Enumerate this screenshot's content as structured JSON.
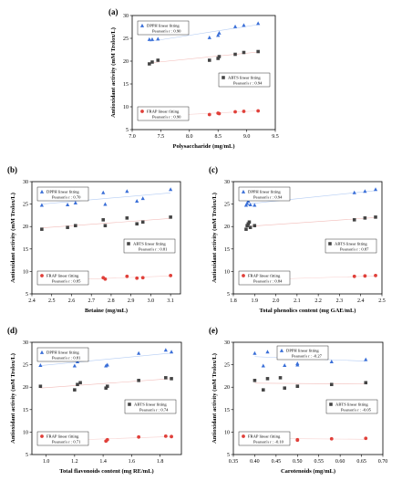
{
  "colors": {
    "dpph": "#3a6fd8",
    "abts": "#444444",
    "frap": "#e0403a",
    "dpph_fit": "#6a9ae8",
    "abts_fit": "#e57a74",
    "frap_fit": "#f0a09c"
  },
  "shared": {
    "ylabel": "Antioxidant activity (mM Trolox/L)",
    "legend": {
      "dpph": "DPPH linear fitting",
      "abts": "ABTS linear fitting",
      "frap": "FRAP linear fitting"
    }
  },
  "chart_data": [
    {
      "id": "a",
      "type": "scatter",
      "panel_label": "(a)",
      "xlabel": "Polysaccharide (mg/mL)",
      "ylabel": "Antioxidant activity (mM Trolox/L)",
      "xlim": [
        7.0,
        9.5
      ],
      "ylim": [
        5,
        30
      ],
      "xticks": [
        7.0,
        7.5,
        8.0,
        8.5,
        9.0,
        9.5
      ],
      "xtick_labels": [
        "7.0",
        "7.5",
        "8.0",
        "8.5",
        "9.0",
        "9.5"
      ],
      "yticks": [
        5,
        10,
        15,
        20,
        25,
        30
      ],
      "pearson": {
        "dpph": "Pearson's r :  0.90",
        "abts": "Pearson's r :  0.94",
        "frap": "Pearson's r :  0.90"
      },
      "legend_positions": {
        "dpph": "top-left",
        "abts": "middle-right",
        "frap": "bottom-left"
      },
      "series": [
        {
          "key": "dpph",
          "marker": "triangle",
          "x": [
            7.3,
            7.35,
            7.45,
            8.35,
            8.5,
            8.52,
            8.8,
            8.95,
            9.2
          ],
          "y": [
            24.8,
            24.8,
            24.9,
            25.2,
            25.7,
            26.2,
            27.6,
            27.9,
            28.3
          ],
          "fit": [
            [
              7.3,
              24.3
            ],
            [
              9.2,
              28.0
            ]
          ]
        },
        {
          "key": "abts",
          "marker": "square",
          "x": [
            7.3,
            7.35,
            7.45,
            8.35,
            8.5,
            8.52,
            8.8,
            8.95,
            9.2
          ],
          "y": [
            19.4,
            19.8,
            20.2,
            20.2,
            20.6,
            21.0,
            21.5,
            21.9,
            22.1
          ],
          "fit": [
            [
              7.3,
              19.6
            ],
            [
              9.2,
              22.0
            ]
          ]
        },
        {
          "key": "frap",
          "marker": "circle",
          "x": [
            7.3,
            7.35,
            7.45,
            8.35,
            8.5,
            8.52,
            8.8,
            8.95,
            9.2
          ],
          "y": [
            7.9,
            8.0,
            8.2,
            8.3,
            8.6,
            8.5,
            8.9,
            9.0,
            9.1
          ],
          "fit": [
            [
              7.3,
              7.9
            ],
            [
              9.2,
              9.1
            ]
          ]
        }
      ]
    },
    {
      "id": "b",
      "type": "scatter",
      "panel_label": "(b)",
      "xlabel": "Betaine (mg/mL)",
      "ylabel": "Antioxidant activity (mM Trolox/L)",
      "xlim": [
        2.4,
        3.15
      ],
      "ylim": [
        5,
        30
      ],
      "xticks": [
        2.4,
        2.5,
        2.6,
        2.7,
        2.8,
        2.9,
        3.0,
        3.1
      ],
      "xtick_labels": [
        "2.4",
        "2.5",
        "2.6",
        "2.7",
        "2.8",
        "2.9",
        "3.0",
        "3.1"
      ],
      "yticks": [
        5,
        10,
        15,
        20,
        25,
        30
      ],
      "pearson": {
        "dpph": "Pearson's r :  0.70",
        "abts": "Pearson's r :  0.81",
        "frap": "Pearson's r :  0.85"
      },
      "legend_positions": {
        "dpph": "top-left",
        "abts": "middle-right",
        "frap": "bottom-left"
      },
      "series": [
        {
          "key": "dpph",
          "marker": "triangle",
          "x": [
            2.45,
            2.58,
            2.62,
            2.76,
            2.77,
            2.88,
            2.93,
            2.96,
            3.1
          ],
          "y": [
            24.8,
            24.9,
            25.3,
            27.6,
            25.0,
            27.9,
            25.7,
            26.3,
            28.3
          ],
          "fit": [
            [
              2.45,
              25.0
            ],
            [
              3.1,
              27.5
            ]
          ]
        },
        {
          "key": "abts",
          "marker": "square",
          "x": [
            2.45,
            2.58,
            2.62,
            2.76,
            2.77,
            2.88,
            2.93,
            2.96,
            3.1
          ],
          "y": [
            19.4,
            19.8,
            20.2,
            21.5,
            20.2,
            21.9,
            20.6,
            21.0,
            22.1
          ],
          "fit": [
            [
              2.45,
              19.7
            ],
            [
              3.1,
              21.8
            ]
          ]
        },
        {
          "key": "frap",
          "marker": "circle",
          "x": [
            2.45,
            2.58,
            2.62,
            2.76,
            2.77,
            2.88,
            2.93,
            2.96,
            3.1
          ],
          "y": [
            7.9,
            8.0,
            8.2,
            8.6,
            8.3,
            8.9,
            8.5,
            8.6,
            9.1
          ],
          "fit": [
            [
              2.45,
              7.9
            ],
            [
              3.1,
              9.0
            ]
          ]
        }
      ]
    },
    {
      "id": "c",
      "type": "scatter",
      "panel_label": "(c)",
      "xlabel": "Total phenolics content (mg GAE/mL)",
      "ylabel": "Antioxidant activity (mM Trolox/L)",
      "xlim": [
        1.8,
        2.5
      ],
      "ylim": [
        5,
        30
      ],
      "xticks": [
        1.8,
        1.9,
        2.0,
        2.1,
        2.2,
        2.3,
        2.4,
        2.5
      ],
      "xtick_labels": [
        "1.8",
        "1.9",
        "2.0",
        "2.1",
        "2.2",
        "2.3",
        "2.4",
        "2.5"
      ],
      "yticks": [
        5,
        10,
        15,
        20,
        25,
        30
      ],
      "pearson": {
        "dpph": "Pearson's r :  0.94",
        "abts": "Pearson's r :  0.87",
        "frap": "Pearson's r :  0.84"
      },
      "legend_positions": {
        "dpph": "top-left",
        "abts": "middle-right",
        "frap": "bottom-left"
      },
      "series": [
        {
          "key": "dpph",
          "marker": "triangle",
          "x": [
            1.86,
            1.865,
            1.87,
            1.875,
            1.88,
            1.9,
            2.37,
            2.42,
            2.47
          ],
          "y": [
            24.8,
            25.2,
            25.7,
            26.2,
            24.9,
            24.8,
            27.6,
            27.9,
            28.3
          ],
          "fit": [
            [
              1.86,
              25.0
            ],
            [
              2.47,
              28.0
            ]
          ]
        },
        {
          "key": "abts",
          "marker": "square",
          "x": [
            1.86,
            1.865,
            1.87,
            1.875,
            1.88,
            1.9,
            2.37,
            2.42,
            2.47
          ],
          "y": [
            19.4,
            20.2,
            20.6,
            21.0,
            19.8,
            20.2,
            21.5,
            21.9,
            22.1
          ],
          "fit": [
            [
              1.86,
              20.0
            ],
            [
              2.47,
              22.0
            ]
          ]
        },
        {
          "key": "frap",
          "marker": "circle",
          "x": [
            1.86,
            1.865,
            1.87,
            1.875,
            1.88,
            1.9,
            2.37,
            2.42,
            2.47
          ],
          "y": [
            7.9,
            8.3,
            8.5,
            8.6,
            8.0,
            8.2,
            8.9,
            9.0,
            9.1
          ],
          "fit": [
            [
              1.86,
              8.1
            ],
            [
              2.47,
              9.0
            ]
          ]
        }
      ]
    },
    {
      "id": "d",
      "type": "scatter",
      "panel_label": "(d)",
      "xlabel": "Total flavonoids content (mg RE/mL)",
      "ylabel": "Antioxidant activity (mM Trolox/L)",
      "xlim": [
        0.9,
        1.95
      ],
      "ylim": [
        5,
        30
      ],
      "xticks": [
        1.0,
        1.2,
        1.4,
        1.6,
        1.8
      ],
      "xtick_labels": [
        "1.0",
        "1.2",
        "1.4",
        "1.6",
        "1.8"
      ],
      "yticks": [
        5,
        10,
        15,
        20,
        25,
        30
      ],
      "pearson": {
        "dpph": "Pearson's r :  0.81",
        "abts": "Pearson's r :  0.74",
        "frap": "Pearson's r :  0.71"
      },
      "legend_positions": {
        "dpph": "top-left",
        "abts": "middle-right",
        "frap": "bottom-left"
      },
      "series": [
        {
          "key": "dpph",
          "marker": "triangle",
          "x": [
            0.96,
            1.2,
            1.22,
            1.24,
            1.42,
            1.43,
            1.65,
            1.84,
            1.88
          ],
          "y": [
            24.9,
            24.8,
            25.7,
            26.3,
            24.8,
            25.0,
            27.6,
            28.3,
            27.9
          ],
          "fit": [
            [
              0.96,
              24.8
            ],
            [
              1.88,
              27.6
            ]
          ]
        },
        {
          "key": "abts",
          "marker": "square",
          "x": [
            0.96,
            1.2,
            1.22,
            1.24,
            1.42,
            1.43,
            1.65,
            1.84,
            1.88
          ],
          "y": [
            20.2,
            19.4,
            20.6,
            21.0,
            19.8,
            20.2,
            21.5,
            22.1,
            21.9
          ],
          "fit": [
            [
              0.96,
              19.8
            ],
            [
              1.88,
              21.9
            ]
          ]
        },
        {
          "key": "frap",
          "marker": "circle",
          "x": [
            0.96,
            1.2,
            1.22,
            1.24,
            1.42,
            1.43,
            1.65,
            1.84,
            1.88
          ],
          "y": [
            8.2,
            7.9,
            8.5,
            8.6,
            8.0,
            8.3,
            8.9,
            9.1,
            9.0
          ],
          "fit": [
            [
              0.96,
              8.0
            ],
            [
              1.88,
              9.0
            ]
          ]
        }
      ]
    },
    {
      "id": "e",
      "type": "scatter",
      "panel_label": "(e)",
      "xlabel": "Carotenoids (mg/mL)",
      "ylabel": "Antioxidant activity (mM Trolox/L)",
      "xlim": [
        0.35,
        0.7
      ],
      "ylim": [
        5,
        30
      ],
      "xticks": [
        0.35,
        0.4,
        0.45,
        0.5,
        0.55,
        0.6,
        0.65,
        0.7
      ],
      "xtick_labels": [
        "0.35",
        "0.40",
        "0.45",
        "0.50",
        "0.55",
        "0.60",
        "0.65",
        "0.70"
      ],
      "yticks": [
        5,
        10,
        15,
        20,
        25,
        30
      ],
      "pearson": {
        "dpph": "Pearson's r :  -0.27",
        "abts": "Pearson's r :  -0.05",
        "frap": "Pearson's r :  -0.10"
      },
      "legend_positions": {
        "dpph": "top-center",
        "abts": "middle-right",
        "frap": "bottom-left"
      },
      "series": [
        {
          "key": "dpph",
          "marker": "triangle",
          "x": [
            0.4,
            0.42,
            0.43,
            0.46,
            0.47,
            0.5,
            0.5,
            0.58,
            0.66
          ],
          "y": [
            27.6,
            24.8,
            27.9,
            28.3,
            24.9,
            25.0,
            25.3,
            25.7,
            26.2
          ],
          "fit": [
            [
              0.4,
              26.8
            ],
            [
              0.66,
              25.8
            ]
          ]
        },
        {
          "key": "abts",
          "marker": "square",
          "x": [
            0.4,
            0.42,
            0.43,
            0.46,
            0.47,
            0.5,
            0.5,
            0.58,
            0.66
          ],
          "y": [
            21.5,
            19.4,
            21.9,
            22.1,
            19.8,
            20.2,
            20.2,
            20.6,
            21.0
          ],
          "fit": [
            [
              0.4,
              20.9
            ],
            [
              0.66,
              20.7
            ]
          ]
        },
        {
          "key": "frap",
          "marker": "circle",
          "x": [
            0.4,
            0.42,
            0.43,
            0.46,
            0.47,
            0.5,
            0.5,
            0.58,
            0.66
          ],
          "y": [
            8.9,
            7.9,
            9.0,
            9.1,
            8.0,
            8.2,
            8.3,
            8.5,
            8.6
          ],
          "fit": [
            [
              0.4,
              8.6
            ],
            [
              0.66,
              8.4
            ]
          ]
        }
      ]
    }
  ]
}
